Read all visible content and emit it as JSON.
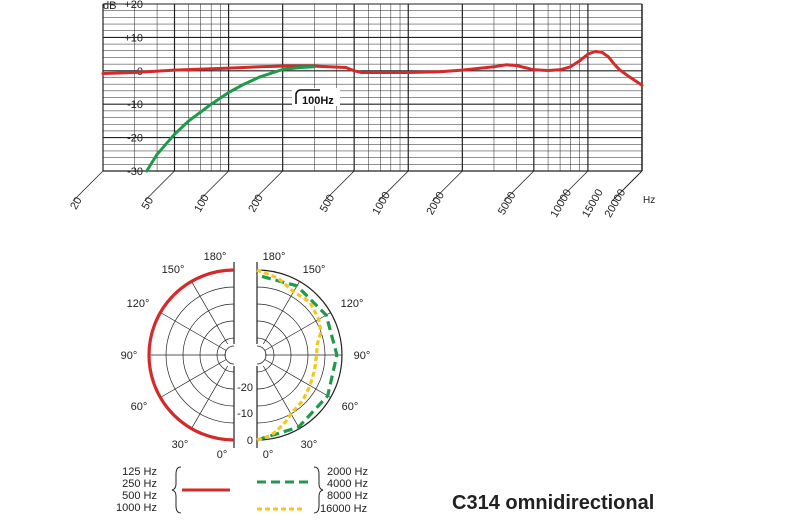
{
  "title": "C314 omnidirectional",
  "colors": {
    "red": "#d42a2a",
    "green": "#1f9a4a",
    "yellow": "#f2c81a",
    "grid": "#222222"
  },
  "chart_data": [
    {
      "type": "line",
      "title": "",
      "xlabel": "Hz",
      "ylabel": "dB",
      "xscale": "log",
      "xlim": [
        20,
        20000
      ],
      "ylim": [
        -30,
        20
      ],
      "yticks": [
        "+20",
        "+10",
        "0",
        "-10",
        "-20",
        "-30"
      ],
      "xticks": [
        "20",
        "50",
        "100",
        "200",
        "500",
        "1000",
        "2000",
        "5000",
        "10000",
        "15000",
        "20000"
      ],
      "annotation": "100Hz",
      "series": [
        {
          "color": "red",
          "x": [
            20,
            30,
            50,
            100,
            150,
            200,
            300,
            450,
            500,
            550,
            700,
            1000,
            1500,
            2000,
            3000,
            3500,
            4000,
            5000,
            6000,
            7000,
            8000,
            9000,
            10000,
            11000,
            12000,
            13000,
            14000,
            15000,
            17000,
            20000
          ],
          "y": [
            -0.8,
            -0.5,
            0.2,
            0.8,
            1.2,
            1.4,
            1.4,
            1.0,
            0,
            -0.5,
            -0.5,
            -0.5,
            -0.3,
            0.2,
            1.2,
            1.8,
            1.6,
            0.3,
            0.1,
            0.3,
            1.2,
            3.0,
            5.0,
            5.8,
            5.5,
            4.2,
            2.0,
            0.3,
            -1.8,
            -4.3
          ]
        },
        {
          "color": "green",
          "x": [
            35,
            40,
            50,
            60,
            80,
            100,
            120,
            150,
            200,
            250,
            300
          ],
          "y": [
            -30,
            -25,
            -19,
            -15,
            -10,
            -6.5,
            -4.2,
            -1.8,
            0.4,
            1.0,
            1.2
          ]
        }
      ]
    },
    {
      "type": "polar",
      "angle_labels": [
        "180°",
        "150°",
        "120°",
        "90°",
        "60°",
        "30°",
        "0°"
      ],
      "radial_labels": [
        "-20",
        "-10",
        "0"
      ],
      "rlim": [
        -25,
        0
      ],
      "series": [
        {
          "color": "red",
          "theta": [
            0,
            180
          ],
          "r": [
            0,
            0
          ]
        },
        {
          "color": "green",
          "theta": [
            0,
            30,
            60,
            90,
            120,
            150,
            180
          ],
          "r": [
            0,
            -0.5,
            -1,
            -1.5,
            -1.5,
            -1.5,
            -1.5
          ]
        },
        {
          "color": "yellow",
          "theta": [
            0,
            10,
            20,
            25,
            30,
            35,
            45,
            60,
            75,
            90,
            100,
            110,
            120,
            135,
            150,
            165,
            180
          ],
          "r": [
            0,
            -1,
            -3,
            -4,
            -5,
            -5.5,
            -6,
            -7,
            -7.5,
            -7.5,
            -7,
            -5,
            -4,
            -3,
            -3.5,
            -1.5,
            0
          ]
        }
      ]
    }
  ],
  "legend": {
    "red_entries": [
      "125 Hz",
      "250 Hz",
      "500 Hz",
      "1000 Hz"
    ],
    "green_entries": [
      "2000 Hz",
      "4000 Hz",
      "8000 Hz"
    ],
    "yellow_entries": [
      "16000 Hz"
    ]
  }
}
